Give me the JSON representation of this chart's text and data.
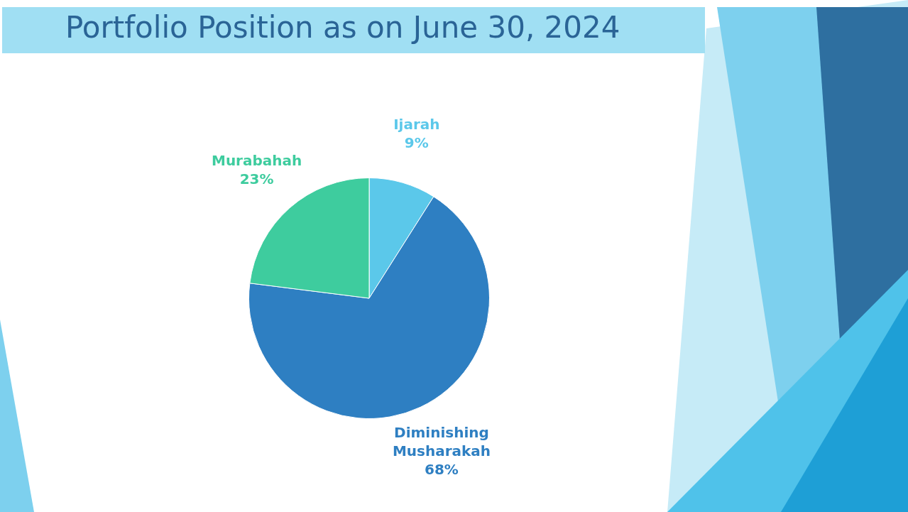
{
  "chart_data": {
    "type": "pie",
    "title": "Portfolio Position as on June 30, 2024",
    "categories": [
      "Ijarah",
      "Diminishing Musharakah",
      "Murabahah"
    ],
    "values": [
      9,
      68,
      23
    ],
    "colors": [
      "#5bc8ea",
      "#2e7fc2",
      "#3ecc9e"
    ],
    "value_labels": [
      "9%",
      "68%",
      "23%"
    ]
  }
}
